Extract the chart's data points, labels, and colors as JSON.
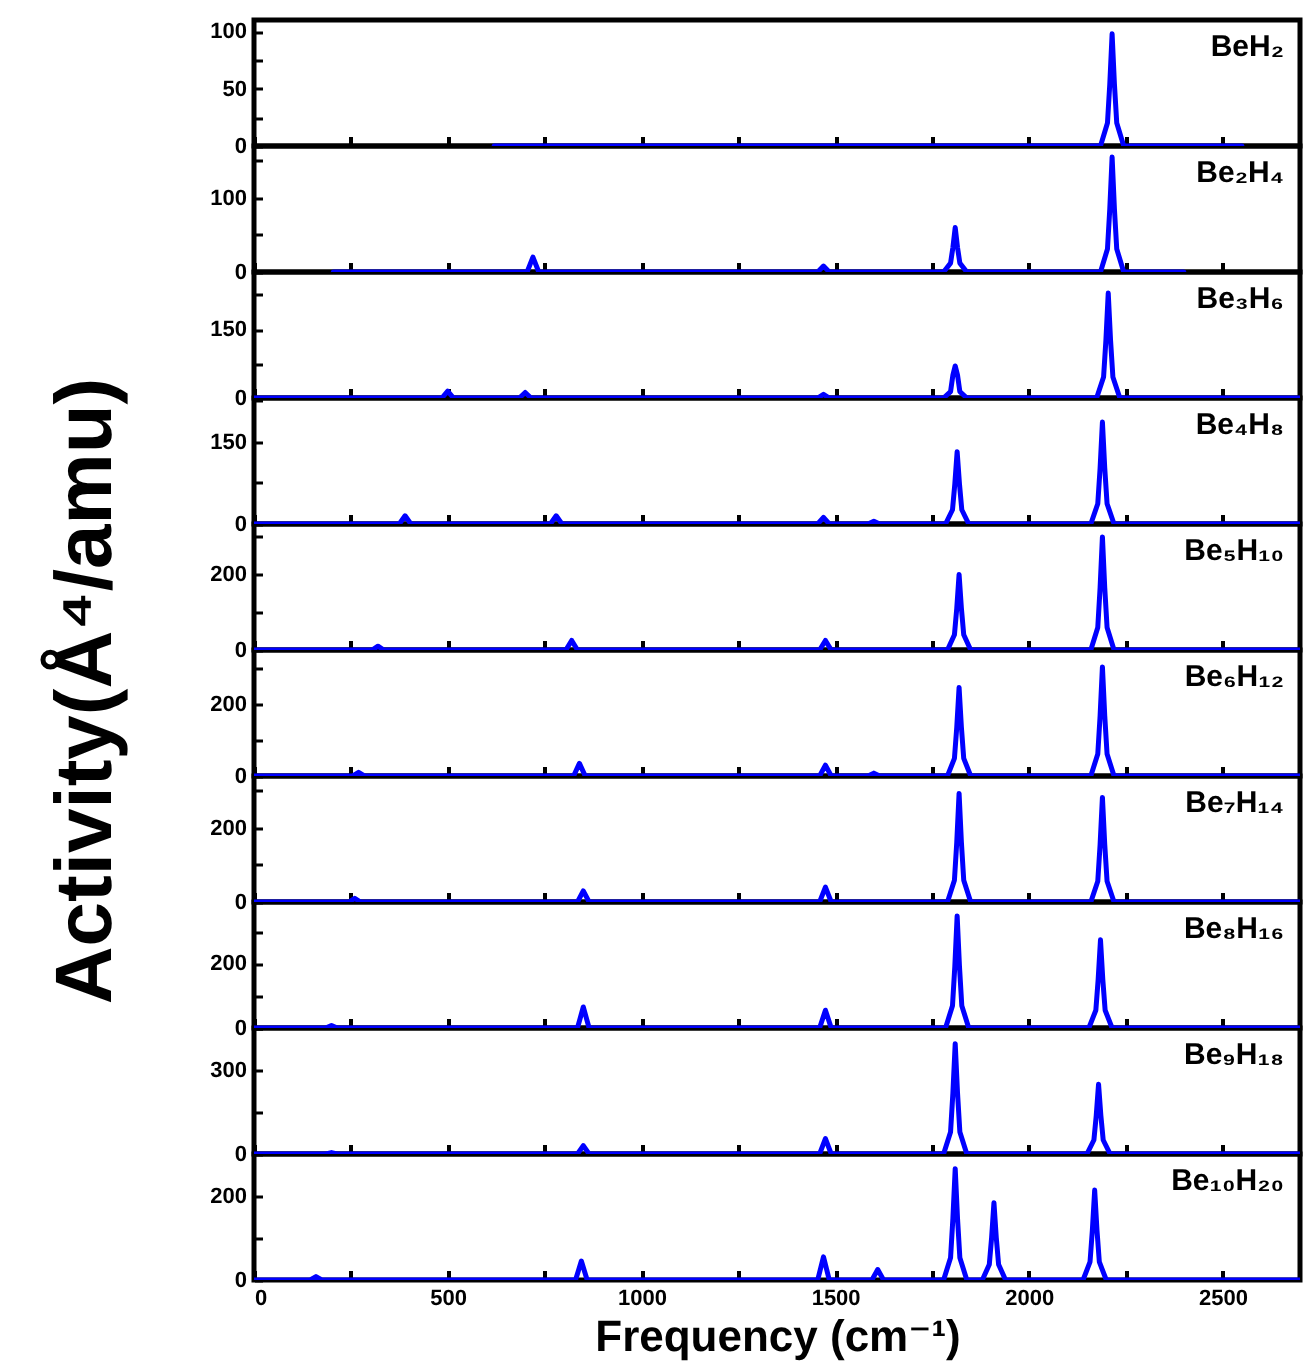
{
  "chart_data": [
    {
      "type": "line",
      "annotations": [
        "BeH₂"
      ],
      "xlim": [
        0,
        2700
      ],
      "xticks": [
        0,
        {
          "value": 250,
          "label": null
        },
        500,
        {
          "value": 750,
          "label": null
        },
        1000,
        {
          "value": 1250,
          "label": null
        },
        1500,
        {
          "value": 1750,
          "label": null
        },
        2000,
        {
          "value": 2250,
          "label": null
        },
        2500
      ],
      "ylim": [
        0,
        110
      ],
      "yticks": [
        0,
        {
          "value": 25,
          "label": null
        },
        50,
        {
          "value": 75,
          "label": null
        },
        100
      ],
      "tick_labels": "y",
      "x": [
        620,
        2185,
        2203,
        2209,
        2215,
        2221,
        2227,
        2245,
        2550
      ],
      "series": [
        {
          "color": "#0000ff",
          "values": [
            0,
            0,
            20,
            54,
            98,
            54,
            20,
            0,
            0
          ]
        }
      ]
    },
    {
      "type": "line",
      "annotations": [
        "Be₂H₄"
      ],
      "xlim": [
        0,
        2700
      ],
      "xticks": [
        0,
        {
          "value": 250,
          "label": null
        },
        500,
        {
          "value": 750,
          "label": null
        },
        1000,
        {
          "value": 1250,
          "label": null
        },
        1500,
        {
          "value": 1750,
          "label": null
        },
        2000,
        {
          "value": 2250,
          "label": null
        },
        2500
      ],
      "ylim": [
        0,
        170
      ],
      "yticks": [
        0,
        {
          "value": 50,
          "label": null
        },
        100,
        {
          "value": 150,
          "label": null
        }
      ],
      "tick_labels": "y",
      "x": [
        205,
        705,
        720,
        735,
        1455,
        1470,
        1485,
        1780,
        1798,
        1804,
        1810,
        1816,
        1822,
        1840,
        2185,
        2203,
        2209,
        2215,
        2221,
        2227,
        2245,
        2400
      ],
      "series": [
        {
          "color": "#0000ff",
          "values": [
            0,
            0,
            20,
            0,
            0,
            8,
            0,
            0,
            12,
            33,
            60,
            33,
            12,
            0,
            0,
            31,
            85,
            155,
            85,
            31,
            0,
            0
          ]
        }
      ]
    },
    {
      "type": "line",
      "annotations": [
        "Be₃H₆"
      ],
      "xlim": [
        0,
        2700
      ],
      "xticks": [
        0,
        {
          "value": 250,
          "label": null
        },
        500,
        {
          "value": 750,
          "label": null
        },
        1000,
        {
          "value": 1250,
          "label": null
        },
        1500,
        {
          "value": 1750,
          "label": null
        },
        2000,
        {
          "value": 2250,
          "label": null
        },
        2500
      ],
      "ylim": [
        0,
        275
      ],
      "yticks": [
        0,
        {
          "value": 75,
          "label": null
        },
        150,
        {
          "value": 225,
          "label": null
        }
      ],
      "tick_labels": "y",
      "x": [
        0,
        485,
        500,
        515,
        685,
        700,
        715,
        1455,
        1470,
        1485,
        1780,
        1798,
        1804,
        1810,
        1816,
        1822,
        1840,
        2175,
        2193,
        2199,
        2205,
        2211,
        2217,
        2235,
        2700
      ],
      "series": [
        {
          "color": "#0000ff",
          "values": [
            0,
            0,
            15,
            0,
            0,
            12,
            0,
            0,
            8,
            0,
            0,
            14,
            50,
            70,
            50,
            14,
            0,
            0,
            46,
            126,
            229,
            126,
            46,
            0,
            0
          ]
        }
      ]
    },
    {
      "type": "line",
      "annotations": [
        "Be₄H₈"
      ],
      "xlim": [
        0,
        2700
      ],
      "xticks": [
        0,
        {
          "value": 250,
          "label": null
        },
        500,
        {
          "value": 750,
          "label": null
        },
        1000,
        {
          "value": 1250,
          "label": null
        },
        1500,
        {
          "value": 1750,
          "label": null
        },
        2000,
        {
          "value": 2250,
          "label": null
        },
        2500
      ],
      "ylim": [
        0,
        230
      ],
      "yticks": [
        0,
        {
          "value": 75,
          "label": null
        },
        150,
        {
          "value": 225,
          "label": null
        }
      ],
      "tick_labels": "y",
      "x": [
        0,
        375,
        390,
        405,
        765,
        780,
        795,
        1455,
        1470,
        1485,
        1585,
        1600,
        1615,
        1785,
        1803,
        1809,
        1815,
        1821,
        1827,
        1845,
        2160,
        2178,
        2184,
        2190,
        2196,
        2202,
        2220,
        2700
      ],
      "series": [
        {
          "color": "#0000ff",
          "values": [
            0,
            0,
            15,
            0,
            0,
            15,
            0,
            0,
            12,
            0,
            0,
            5,
            0,
            0,
            26,
            73,
            132,
            73,
            26,
            0,
            0,
            37,
            102,
            186,
            102,
            37,
            0,
            0
          ]
        }
      ]
    },
    {
      "type": "line",
      "annotations": [
        "Be₅H₁₀"
      ],
      "ylabel": "Activity(Å⁴/amu)",
      "xlim": [
        0,
        2700
      ],
      "xticks": [
        0,
        {
          "value": 250,
          "label": null
        },
        500,
        {
          "value": 750,
          "label": null
        },
        1000,
        {
          "value": 1250,
          "label": null
        },
        1500,
        {
          "value": 1750,
          "label": null
        },
        2000,
        {
          "value": 2250,
          "label": null
        },
        2500
      ],
      "ylim": [
        0,
        330
      ],
      "yticks": [
        0,
        {
          "value": 100,
          "label": null
        },
        200,
        {
          "value": 300,
          "label": null
        }
      ],
      "tick_labels": "y",
      "x": [
        0,
        305,
        320,
        335,
        805,
        820,
        835,
        1460,
        1475,
        1490,
        1790,
        1808,
        1814,
        1820,
        1826,
        1832,
        1850,
        2160,
        2178,
        2184,
        2190,
        2196,
        2202,
        2220,
        2700
      ],
      "series": [
        {
          "color": "#0000ff",
          "values": [
            0,
            0,
            10,
            0,
            0,
            25,
            0,
            0,
            25,
            0,
            0,
            40,
            109,
            198,
            109,
            40,
            0,
            0,
            59,
            163,
            296,
            163,
            59,
            0,
            0
          ]
        }
      ]
    },
    {
      "type": "line",
      "annotations": [
        "Be₆H₁₂"
      ],
      "xlim": [
        0,
        2700
      ],
      "xticks": [
        0,
        {
          "value": 250,
          "label": null
        },
        500,
        {
          "value": 750,
          "label": null
        },
        1000,
        {
          "value": 1250,
          "label": null
        },
        1500,
        {
          "value": 1750,
          "label": null
        },
        2000,
        {
          "value": 2250,
          "label": null
        },
        2500
      ],
      "ylim": [
        0,
        350
      ],
      "yticks": [
        0,
        {
          "value": 100,
          "label": null
        },
        200,
        {
          "value": 300,
          "label": null
        }
      ],
      "tick_labels": "y",
      "x": [
        0,
        255,
        270,
        285,
        825,
        840,
        855,
        1460,
        1475,
        1490,
        1585,
        1600,
        1615,
        1790,
        1808,
        1814,
        1820,
        1826,
        1832,
        1850,
        2160,
        2178,
        2184,
        2190,
        2196,
        2202,
        2220,
        2700
      ],
      "series": [
        {
          "color": "#0000ff",
          "values": [
            0,
            0,
            10,
            0,
            0,
            35,
            0,
            0,
            30,
            0,
            0,
            8,
            0,
            0,
            49,
            135,
            246,
            135,
            49,
            0,
            0,
            61,
            167,
            303,
            167,
            61,
            0,
            0
          ]
        }
      ]
    },
    {
      "type": "line",
      "annotations": [
        "Be₇H₁₄"
      ],
      "xlim": [
        0,
        2700
      ],
      "xticks": [
        0,
        {
          "value": 250,
          "label": null
        },
        500,
        {
          "value": 750,
          "label": null
        },
        1000,
        {
          "value": 1250,
          "label": null
        },
        1500,
        {
          "value": 1750,
          "label": null
        },
        2000,
        {
          "value": 2250,
          "label": null
        },
        2500
      ],
      "ylim": [
        0,
        340
      ],
      "yticks": [
        0,
        {
          "value": 100,
          "label": null
        },
        200,
        {
          "value": 300,
          "label": null
        }
      ],
      "tick_labels": "y",
      "x": [
        0,
        245,
        260,
        275,
        835,
        850,
        865,
        1460,
        1475,
        1490,
        1790,
        1808,
        1814,
        1820,
        1826,
        1832,
        1850,
        2160,
        2178,
        2184,
        2190,
        2196,
        2202,
        2220,
        2700
      ],
      "series": [
        {
          "color": "#0000ff",
          "values": [
            0,
            0,
            10,
            0,
            0,
            30,
            0,
            0,
            40,
            0,
            0,
            59,
            161,
            293,
            161,
            59,
            0,
            0,
            56,
            155,
            282,
            155,
            56,
            0,
            0
          ]
        }
      ]
    },
    {
      "type": "line",
      "annotations": [
        "Be₈H₁₆"
      ],
      "xlim": [
        0,
        2700
      ],
      "xticks": [
        0,
        {
          "value": 250,
          "label": null
        },
        500,
        {
          "value": 750,
          "label": null
        },
        1000,
        {
          "value": 1250,
          "label": null
        },
        1500,
        {
          "value": 1750,
          "label": null
        },
        2000,
        {
          "value": 2250,
          "label": null
        },
        2500
      ],
      "ylim": [
        0,
        390
      ],
      "yticks": [
        0,
        {
          "value": 100,
          "label": null
        },
        200,
        {
          "value": 300,
          "label": null
        }
      ],
      "tick_labels": "y",
      "x": [
        0,
        185,
        200,
        215,
        835,
        850,
        865,
        1460,
        1475,
        1490,
        1785,
        1803,
        1809,
        1815,
        1821,
        1827,
        1845,
        2155,
        2173,
        2179,
        2185,
        2191,
        2197,
        2215,
        2700
      ],
      "series": [
        {
          "color": "#0000ff",
          "values": [
            0,
            0,
            8,
            0,
            0,
            65,
            0,
            0,
            55,
            0,
            0,
            69,
            191,
            347,
            191,
            69,
            0,
            0,
            55,
            150,
            273,
            150,
            55,
            0,
            0
          ]
        }
      ]
    },
    {
      "type": "line",
      "annotations": [
        "Be₉H₁₈"
      ],
      "xlim": [
        0,
        2700
      ],
      "xticks": [
        0,
        {
          "value": 250,
          "label": null
        },
        500,
        {
          "value": 750,
          "label": null
        },
        1000,
        {
          "value": 1250,
          "label": null
        },
        1500,
        {
          "value": 1750,
          "label": null
        },
        2000,
        {
          "value": 2250,
          "label": null
        },
        2500
      ],
      "ylim": [
        0,
        450
      ],
      "yticks": [
        0,
        {
          "value": 150,
          "label": null
        },
        300,
        {
          "value": 450,
          "label": null
        }
      ],
      "tick_labels": "y",
      "x": [
        0,
        185,
        200,
        215,
        835,
        850,
        865,
        1460,
        1475,
        1490,
        1780,
        1798,
        1804,
        1810,
        1816,
        1822,
        1840,
        2150,
        2168,
        2174,
        2180,
        2186,
        2192,
        2210,
        2700
      ],
      "series": [
        {
          "color": "#0000ff",
          "values": [
            0,
            0,
            5,
            0,
            0,
            30,
            0,
            0,
            55,
            0,
            0,
            79,
            217,
            394,
            217,
            79,
            0,
            0,
            50,
            137,
            249,
            137,
            50,
            0,
            0
          ]
        }
      ]
    },
    {
      "type": "line",
      "annotations": [
        "Be₁₀H₂₀"
      ],
      "xlabel": "Frequency (cm⁻¹)",
      "xlim": [
        0,
        2700
      ],
      "xticks": [
        0,
        {
          "value": 250,
          "label": null
        },
        500,
        {
          "value": 750,
          "label": null
        },
        1000,
        {
          "value": 1250,
          "label": null
        },
        1500,
        {
          "value": 1750,
          "label": null
        },
        2000,
        {
          "value": 2250,
          "label": null
        },
        2500
      ],
      "ylim": [
        0,
        300
      ],
      "yticks": [
        0,
        {
          "value": 100,
          "label": null
        },
        200
      ],
      "x": [
        0,
        145,
        160,
        175,
        830,
        845,
        860,
        1455,
        1470,
        1485,
        1595,
        1610,
        1625,
        1780,
        1798,
        1804,
        1810,
        1816,
        1822,
        1840,
        1880,
        1898,
        1904,
        1910,
        1916,
        1922,
        1940,
        2140,
        2158,
        2164,
        2170,
        2176,
        2182,
        2200,
        2700
      ],
      "series": [
        {
          "color": "#0000ff",
          "values": [
            0,
            0,
            8,
            0,
            0,
            45,
            0,
            0,
            55,
            0,
            0,
            25,
            0,
            0,
            53,
            146,
            265,
            146,
            53,
            0,
            0,
            37,
            101,
            184,
            101,
            37,
            0,
            0,
            43,
            118,
            214,
            118,
            43,
            0,
            0
          ]
        }
      ]
    }
  ]
}
